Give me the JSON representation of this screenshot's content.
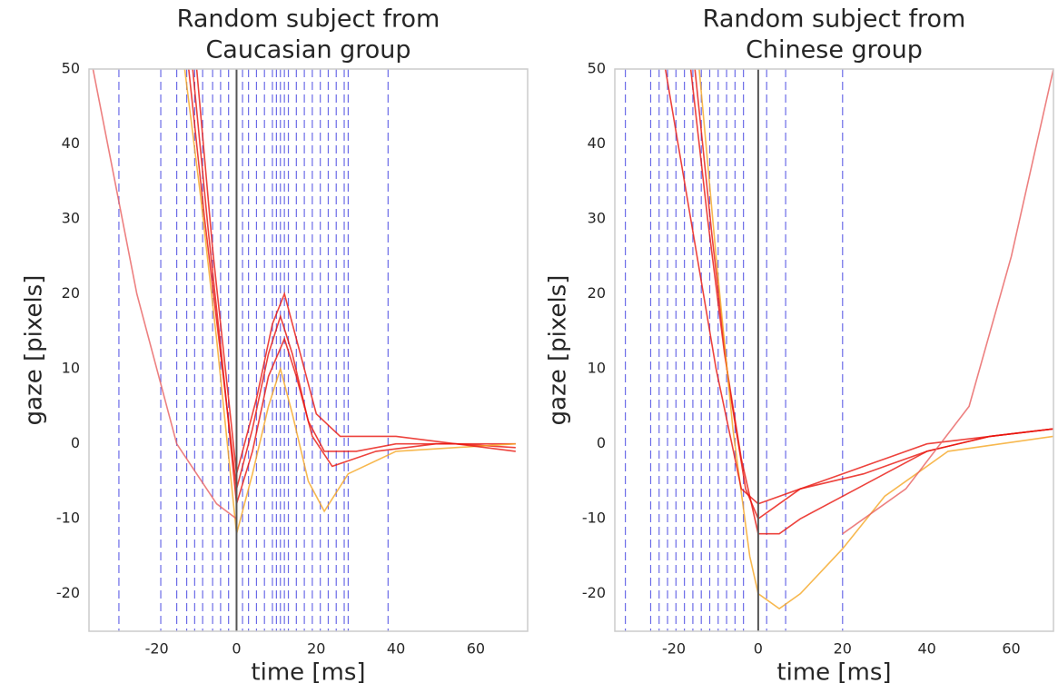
{
  "chart_data": [
    {
      "type": "line",
      "title": [
        "Random subject from",
        "Caucasian group"
      ],
      "xlabel": "time [ms]",
      "ylabel": "gaze [pixels]",
      "xlim": [
        -37,
        73
      ],
      "ylim": [
        -25,
        50
      ],
      "xticks": [
        -20,
        0,
        20,
        40,
        60
      ],
      "yticks": [
        -20,
        -10,
        0,
        10,
        20,
        30,
        40,
        50
      ],
      "vlines": [
        -29.5,
        -19,
        -15,
        -12.5,
        -10.5,
        -8.5,
        -6,
        -4,
        -2,
        1.5,
        3,
        5,
        7,
        9,
        10,
        11,
        12,
        13,
        15,
        17,
        19,
        21,
        23,
        25,
        27,
        28,
        38
      ],
      "vline_color": "#3a3ae0",
      "zero_line": 0,
      "zero_color": "#555555",
      "series": [
        {
          "color": "#e8140c",
          "x": [
            -12,
            -8,
            -4,
            0,
            4,
            8,
            11,
            14,
            18,
            22,
            30,
            40,
            55,
            70
          ],
          "values": [
            50,
            30,
            12,
            -6,
            2,
            12,
            17,
            12,
            3,
            -1,
            -1,
            0,
            0,
            -0.5
          ]
        },
        {
          "color": "#e8140c",
          "x": [
            -11,
            -7,
            -3,
            0,
            4,
            8,
            12,
            15,
            19,
            24,
            35,
            50,
            70
          ],
          "values": [
            50,
            28,
            8,
            -8,
            -1,
            9,
            14,
            9,
            1,
            -3,
            -1,
            0,
            0
          ]
        },
        {
          "color": "#f5a623",
          "x": [
            -13,
            -9,
            -5,
            0,
            4,
            8,
            11,
            14,
            18,
            22,
            28,
            40,
            70
          ],
          "values": [
            50,
            33,
            14,
            -12,
            -4,
            5,
            10,
            4,
            -5,
            -9,
            -4,
            -1,
            0
          ]
        },
        {
          "color": "#e8140c",
          "x": [
            -10,
            -6,
            -2,
            0,
            5,
            9,
            12,
            16,
            20,
            26,
            40,
            70
          ],
          "values": [
            50,
            26,
            6,
            -4,
            6,
            16,
            20,
            12,
            4,
            1,
            1,
            -1
          ]
        },
        {
          "color": "#e86060",
          "x": [
            -36,
            -25,
            -15,
            -5,
            0
          ],
          "values": [
            50,
            20,
            0,
            -8,
            -10
          ]
        }
      ]
    },
    {
      "type": "line",
      "title": [
        "Random subject from",
        "Chinese group"
      ],
      "xlabel": "time [ms]",
      "ylabel": "gaze [pixels]",
      "xlim": [
        -34,
        70
      ],
      "ylim": [
        -25,
        50
      ],
      "xticks": [
        -20,
        0,
        20,
        40,
        60
      ],
      "yticks": [
        -20,
        -10,
        0,
        10,
        20,
        30,
        40,
        50
      ],
      "vlines": [
        -31.5,
        -25.5,
        -23.5,
        -21.5,
        -19.5,
        -17.5,
        -15.5,
        -13.5,
        -11.5,
        -9.5,
        -7.5,
        -5.5,
        -3.5,
        2,
        6.5,
        20
      ],
      "vline_color": "#3a3ae0",
      "zero_line": 0,
      "zero_color": "#555555",
      "series": [
        {
          "color": "#e8140c",
          "x": [
            -16,
            -12,
            -8,
            -4,
            0,
            5,
            10,
            20,
            30,
            40,
            55,
            70
          ],
          "values": [
            50,
            30,
            12,
            -2,
            -12,
            -12,
            -10,
            -7,
            -4,
            -1,
            1,
            2
          ]
        },
        {
          "color": "#e8140c",
          "x": [
            -15,
            -11,
            -7,
            -3,
            0,
            5,
            10,
            20,
            30,
            40,
            55,
            70
          ],
          "values": [
            50,
            28,
            8,
            -6,
            -10,
            -8,
            -6,
            -4,
            -2,
            0,
            1,
            2
          ]
        },
        {
          "color": "#f5a623",
          "x": [
            -14,
            -10,
            -6,
            -2,
            0,
            5,
            10,
            20,
            30,
            45,
            70
          ],
          "values": [
            50,
            25,
            2,
            -15,
            -20,
            -22,
            -20,
            -14,
            -7,
            -1,
            1
          ]
        },
        {
          "color": "#e8140c",
          "x": [
            -22,
            -16,
            -10,
            -4,
            0,
            10,
            25,
            40,
            55,
            70
          ],
          "values": [
            50,
            30,
            10,
            -6,
            -8,
            -6,
            -4,
            -1,
            1,
            2
          ]
        },
        {
          "color": "#e86060",
          "x": [
            20,
            35,
            50,
            60,
            70
          ],
          "values": [
            -12,
            -6,
            5,
            25,
            50
          ]
        }
      ]
    }
  ]
}
